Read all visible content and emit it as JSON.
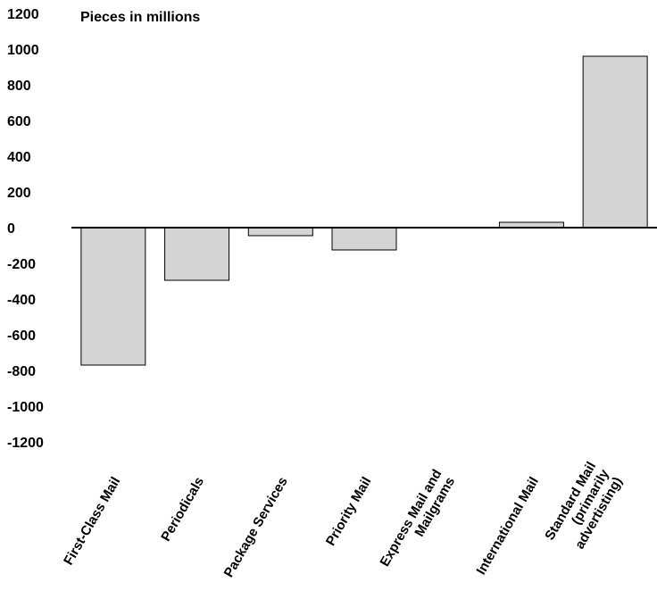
{
  "chart_data": {
    "type": "bar",
    "ylabel": "Pieces in millions",
    "ylim": [
      -1200,
      1200
    ],
    "yticks": [
      1200,
      1000,
      800,
      600,
      400,
      200,
      0,
      -200,
      -400,
      -600,
      -800,
      -1000,
      -1200
    ],
    "categories": [
      [
        "First-Class Mail"
      ],
      [
        "Periodicals"
      ],
      [
        "Package Services"
      ],
      [
        "Priority Mail"
      ],
      [
        "Express Mail and",
        "Mailgrams"
      ],
      [
        "International Mail"
      ],
      [
        "Standard Mail",
        "(primarily",
        "advertisting)"
      ]
    ],
    "values": [
      -770,
      -295,
      -45,
      -125,
      0,
      30,
      960
    ],
    "bar_color": "#d4d4d4",
    "grid": false
  }
}
